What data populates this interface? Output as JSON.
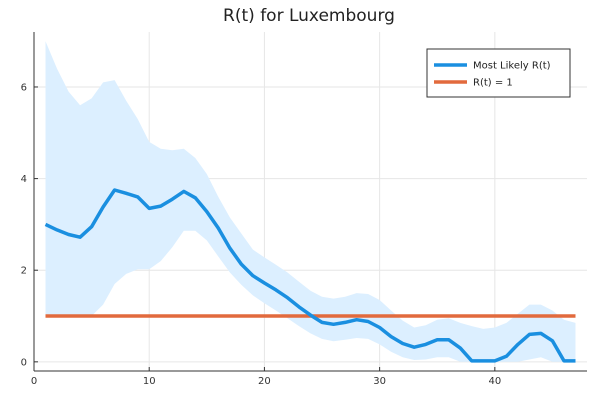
{
  "chart_data": {
    "type": "line",
    "title": "R(t) for Luxembourg",
    "xlabel": "",
    "ylabel": "",
    "xlim": [
      0,
      48
    ],
    "ylim": [
      -0.2,
      7.2
    ],
    "xticks": [
      0,
      10,
      20,
      30,
      40
    ],
    "yticks": [
      0,
      2,
      4,
      6
    ],
    "grid": true,
    "legend_position": "top-right",
    "x": [
      1,
      2,
      3,
      4,
      5,
      6,
      7,
      8,
      9,
      10,
      11,
      12,
      13,
      14,
      15,
      16,
      17,
      18,
      19,
      20,
      21,
      22,
      23,
      24,
      25,
      26,
      27,
      28,
      29,
      30,
      31,
      32,
      33,
      34,
      35,
      36,
      37,
      38,
      39,
      40,
      41,
      42,
      43,
      44,
      45,
      46,
      47
    ],
    "series": [
      {
        "name": "Most Likely R(t)",
        "color": "#1a8fe0",
        "values": [
          3.0,
          2.88,
          2.78,
          2.72,
          2.95,
          3.38,
          3.75,
          3.68,
          3.6,
          3.35,
          3.4,
          3.55,
          3.72,
          3.58,
          3.28,
          2.92,
          2.48,
          2.13,
          1.88,
          1.72,
          1.57,
          1.4,
          1.2,
          1.02,
          0.86,
          0.82,
          0.86,
          0.92,
          0.88,
          0.75,
          0.55,
          0.4,
          0.32,
          0.38,
          0.48,
          0.48,
          0.3,
          0.02,
          0.02,
          0.02,
          0.12,
          0.38,
          0.6,
          0.62,
          0.46,
          0.02,
          0.02
        ]
      },
      {
        "name": "R(t) = 1",
        "color": "#e26a3d",
        "values": [
          1,
          1,
          1,
          1,
          1,
          1,
          1,
          1,
          1,
          1,
          1,
          1,
          1,
          1,
          1,
          1,
          1,
          1,
          1,
          1,
          1,
          1,
          1,
          1,
          1,
          1,
          1,
          1,
          1,
          1,
          1,
          1,
          1,
          1,
          1,
          1,
          1,
          1,
          1,
          1,
          1,
          1,
          1,
          1,
          1,
          1,
          1
        ]
      }
    ],
    "band": {
      "color": "#dcefff",
      "upper": [
        7.0,
        6.4,
        5.9,
        5.6,
        5.75,
        6.1,
        6.15,
        5.7,
        5.3,
        4.8,
        4.65,
        4.62,
        4.65,
        4.45,
        4.1,
        3.6,
        3.15,
        2.8,
        2.45,
        2.28,
        2.12,
        1.95,
        1.75,
        1.55,
        1.42,
        1.38,
        1.42,
        1.5,
        1.48,
        1.35,
        1.12,
        0.9,
        0.75,
        0.8,
        0.92,
        0.95,
        0.85,
        0.78,
        0.72,
        0.75,
        0.85,
        1.05,
        1.25,
        1.25,
        1.12,
        0.92,
        0.85
      ],
      "lower": [
        1.0,
        1.0,
        1.0,
        1.0,
        1.0,
        1.25,
        1.7,
        1.92,
        2.02,
        2.02,
        2.2,
        2.5,
        2.86,
        2.86,
        2.65,
        2.3,
        1.95,
        1.68,
        1.45,
        1.28,
        1.12,
        0.95,
        0.78,
        0.62,
        0.5,
        0.45,
        0.48,
        0.52,
        0.5,
        0.38,
        0.22,
        0.1,
        0.04,
        0.05,
        0.1,
        0.1,
        0.0,
        0.0,
        0.0,
        0.0,
        0.0,
        0.0,
        0.05,
        0.1,
        0.0,
        0.0,
        0.0
      ]
    }
  }
}
